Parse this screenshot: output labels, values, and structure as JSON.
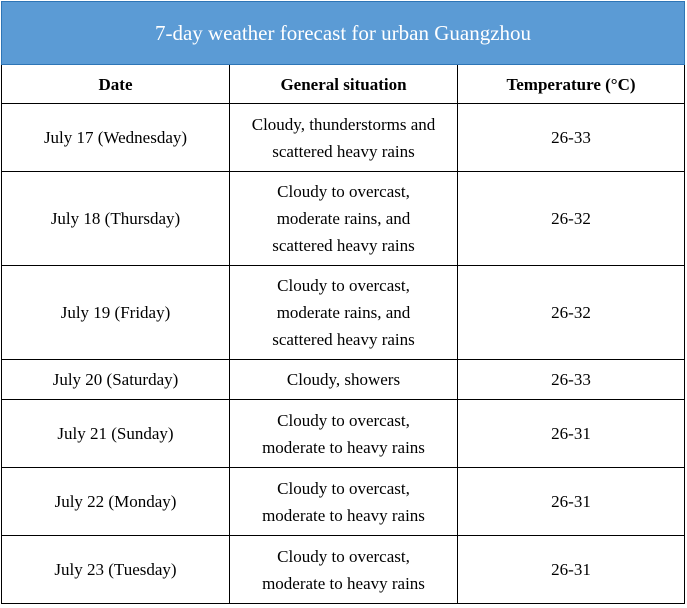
{
  "title": "7-day weather forecast for urban Guangzhou",
  "columns": {
    "date": "Date",
    "situation": "General situation",
    "temperature": "Temperature (°C)"
  },
  "rows": [
    {
      "date": "July 17 (Wednesday)",
      "situation": "Cloudy, thunderstorms and scattered heavy rains",
      "temperature": "26-33"
    },
    {
      "date": "July 18 (Thursday)",
      "situation": "Cloudy to overcast, moderate rains, and scattered heavy rains",
      "temperature": "26-32"
    },
    {
      "date": "July 19 (Friday)",
      "situation": "Cloudy to overcast, moderate rains, and scattered heavy rains",
      "temperature": "26-32"
    },
    {
      "date": "July 20 (Saturday)",
      "situation": "Cloudy, showers",
      "temperature": "26-33"
    },
    {
      "date": "July 21 (Sunday)",
      "situation": "Cloudy to overcast, moderate to heavy rains",
      "temperature": "26-31"
    },
    {
      "date": "July 22 (Monday)",
      "situation": "Cloudy to overcast, moderate to heavy rains",
      "temperature": "26-31"
    },
    {
      "date": "July 23 (Tuesday)",
      "situation": "Cloudy to overcast, moderate to heavy rains",
      "temperature": "26-31"
    }
  ]
}
